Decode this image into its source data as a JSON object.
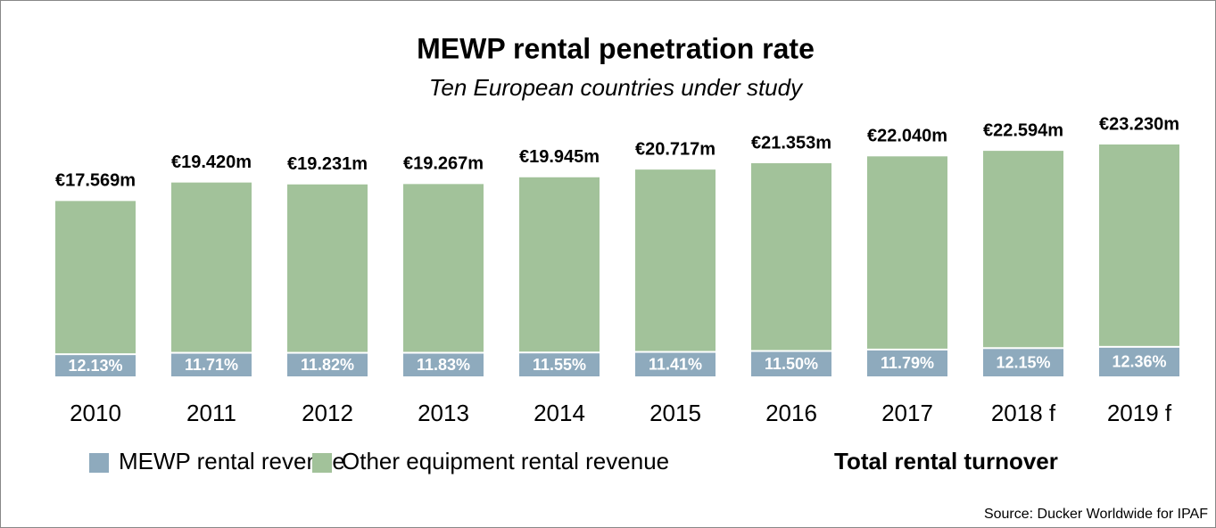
{
  "chart_data": {
    "type": "stacked_bar",
    "title": "MEWP rental penetration rate",
    "subtitle": "Ten European countries under study",
    "source": "Source: Ducker Worldwide for IPAF",
    "categories": [
      "2010",
      "2011",
      "2012",
      "2013",
      "2014",
      "2015",
      "2016",
      "2017",
      "2018 f",
      "2019 f"
    ],
    "series": [
      {
        "name": "MEWP rental revenue",
        "color": "#8eaabd",
        "values": [
          12.13,
          11.71,
          11.82,
          11.83,
          11.55,
          11.41,
          11.5,
          11.79,
          12.15,
          12.36
        ],
        "value_labels": [
          "12.13%",
          "11.71%",
          "11.82%",
          "11.83%",
          "11.55%",
          "11.41%",
          "11.50%",
          "11.79%",
          "12.15%",
          "12.36%"
        ]
      },
      {
        "name": "Other equipment rental revenue",
        "color": "#a2c29a",
        "values": [
          15.438,
          17.146,
          16.958,
          16.988,
          17.641,
          18.353,
          18.897,
          19.442,
          19.849,
          20.359
        ]
      }
    ],
    "totals": {
      "name": "Total rental turnover",
      "values": [
        17.569,
        19.42,
        19.231,
        19.267,
        19.945,
        20.717,
        21.353,
        22.04,
        22.594,
        23.23
      ],
      "value_labels": [
        "€17.569m",
        "€19.420m",
        "€19.231m",
        "€19.267m",
        "€19.945m",
        "€20.717m",
        "€21.353m",
        "€22.040m",
        "€22.594m",
        "€23.230m"
      ]
    }
  }
}
